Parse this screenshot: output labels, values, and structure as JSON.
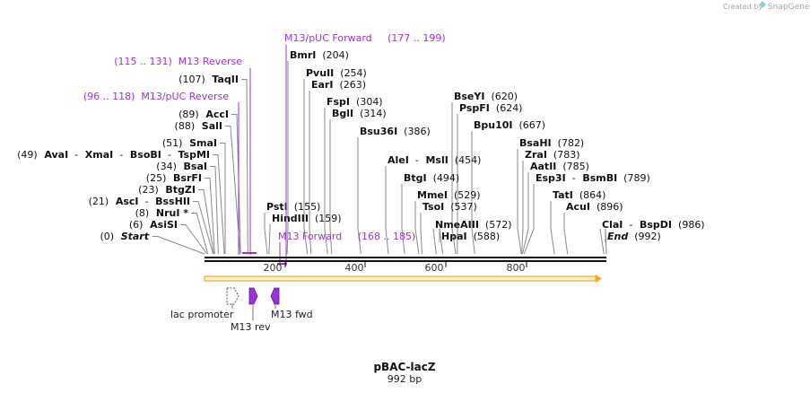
{
  "credit": {
    "created_by": "Created by",
    "brand": "SnapGene"
  },
  "map": {
    "name": "pBAC-lacZ",
    "length_label": "992 bp",
    "length": 992,
    "accent": "#9a33d6",
    "arrow_color": "#f5a623"
  },
  "ticks": [
    {
      "value": 200,
      "label": "200"
    },
    {
      "value": 400,
      "label": "400"
    },
    {
      "value": 600,
      "label": "600"
    },
    {
      "value": 800,
      "label": "800"
    }
  ],
  "sites": [
    {
      "id": "start",
      "parts": [
        {
          "t": "(0)",
          "s": "num"
        },
        {
          "t": "Start",
          "s": "site ital"
        }
      ]
    },
    {
      "id": "asisi",
      "parts": [
        {
          "t": "(6)",
          "s": "num"
        },
        {
          "t": "AsiSI",
          "s": "site"
        }
      ]
    },
    {
      "id": "nrui",
      "parts": [
        {
          "t": "(8)",
          "s": "num"
        },
        {
          "t": "NruI *",
          "s": "site"
        }
      ]
    },
    {
      "id": "asci",
      "parts": [
        {
          "t": "(21)",
          "s": "num"
        },
        {
          "t": "AscI",
          "s": "site"
        },
        {
          "t": "-",
          "s": "num"
        },
        {
          "t": "BssHII",
          "s": "site"
        }
      ]
    },
    {
      "id": "btgzi",
      "parts": [
        {
          "t": "(23)",
          "s": "num"
        },
        {
          "t": "BtgZI",
          "s": "site"
        }
      ]
    },
    {
      "id": "bsrfi",
      "parts": [
        {
          "t": "(25)",
          "s": "num"
        },
        {
          "t": "BsrFI",
          "s": "site"
        }
      ]
    },
    {
      "id": "bsai",
      "parts": [
        {
          "t": "(34)",
          "s": "num"
        },
        {
          "t": "BsaI",
          "s": "site"
        }
      ]
    },
    {
      "id": "avai",
      "parts": [
        {
          "t": "(49)",
          "s": "num"
        },
        {
          "t": "AvaI",
          "s": "site"
        },
        {
          "t": "-",
          "s": "num"
        },
        {
          "t": "XmaI",
          "s": "site"
        },
        {
          "t": "-",
          "s": "num"
        },
        {
          "t": "BsoBI",
          "s": "site"
        },
        {
          "t": "-",
          "s": "num"
        },
        {
          "t": "TspMI",
          "s": "site"
        }
      ]
    },
    {
      "id": "smai",
      "parts": [
        {
          "t": "(51)",
          "s": "num"
        },
        {
          "t": "SmaI",
          "s": "site"
        }
      ]
    },
    {
      "id": "sali",
      "parts": [
        {
          "t": "(88)",
          "s": "num"
        },
        {
          "t": "SalI",
          "s": "site"
        }
      ]
    },
    {
      "id": "acci",
      "parts": [
        {
          "t": "(89)",
          "s": "num"
        },
        {
          "t": "AccI",
          "s": "site"
        }
      ]
    },
    {
      "id": "taqii",
      "parts": [
        {
          "t": "(107)",
          "s": "num"
        },
        {
          "t": "TaqII",
          "s": "site"
        }
      ]
    },
    {
      "id": "psti",
      "parts": [
        {
          "t": "PstI",
          "s": "site"
        },
        {
          "t": "(155)",
          "s": "num"
        }
      ]
    },
    {
      "id": "hindiii",
      "parts": [
        {
          "t": "HindIII",
          "s": "site"
        },
        {
          "t": "(159)",
          "s": "num"
        }
      ]
    },
    {
      "id": "bmri",
      "parts": [
        {
          "t": "BmrI",
          "s": "site"
        },
        {
          "t": "(204)",
          "s": "num"
        }
      ]
    },
    {
      "id": "pvuii",
      "parts": [
        {
          "t": "PvuII",
          "s": "site"
        },
        {
          "t": "(254)",
          "s": "num"
        }
      ]
    },
    {
      "id": "eari",
      "parts": [
        {
          "t": "EarI",
          "s": "site"
        },
        {
          "t": "(263)",
          "s": "num"
        }
      ]
    },
    {
      "id": "fspi",
      "parts": [
        {
          "t": "FspI",
          "s": "site"
        },
        {
          "t": "(304)",
          "s": "num"
        }
      ]
    },
    {
      "id": "bgli",
      "parts": [
        {
          "t": "BglI",
          "s": "site"
        },
        {
          "t": "(314)",
          "s": "num"
        }
      ]
    },
    {
      "id": "bsu36i",
      "parts": [
        {
          "t": "Bsu36I",
          "s": "site"
        },
        {
          "t": "(386)",
          "s": "num"
        }
      ]
    },
    {
      "id": "alei",
      "parts": [
        {
          "t": "AleI",
          "s": "site"
        },
        {
          "t": "-",
          "s": "num"
        },
        {
          "t": "MslI",
          "s": "site"
        },
        {
          "t": "(454)",
          "s": "num"
        }
      ]
    },
    {
      "id": "btgi",
      "parts": [
        {
          "t": "BtgI",
          "s": "site"
        },
        {
          "t": "(494)",
          "s": "num"
        }
      ]
    },
    {
      "id": "mmei",
      "parts": [
        {
          "t": "MmeI",
          "s": "site"
        },
        {
          "t": "(529)",
          "s": "num"
        }
      ]
    },
    {
      "id": "tsoi",
      "parts": [
        {
          "t": "TsoI",
          "s": "site"
        },
        {
          "t": "(537)",
          "s": "num"
        }
      ]
    },
    {
      "id": "nmeaiii",
      "parts": [
        {
          "t": "NmeAIII",
          "s": "site"
        },
        {
          "t": "(572)",
          "s": "num"
        }
      ]
    },
    {
      "id": "hpai",
      "parts": [
        {
          "t": "HpaI",
          "s": "site"
        },
        {
          "t": "(588)",
          "s": "num"
        }
      ]
    },
    {
      "id": "bseyi",
      "parts": [
        {
          "t": "BseYI",
          "s": "site"
        },
        {
          "t": "(620)",
          "s": "num"
        }
      ]
    },
    {
      "id": "pspfi",
      "parts": [
        {
          "t": "PspFI",
          "s": "site"
        },
        {
          "t": "(624)",
          "s": "num"
        }
      ]
    },
    {
      "id": "bpu10i",
      "parts": [
        {
          "t": "Bpu10I",
          "s": "site"
        },
        {
          "t": "(667)",
          "s": "num"
        }
      ]
    },
    {
      "id": "bsahi",
      "parts": [
        {
          "t": "BsaHI",
          "s": "site"
        },
        {
          "t": "(782)",
          "s": "num"
        }
      ]
    },
    {
      "id": "zrai",
      "parts": [
        {
          "t": "ZraI",
          "s": "site"
        },
        {
          "t": "(783)",
          "s": "num"
        }
      ]
    },
    {
      "id": "aatii",
      "parts": [
        {
          "t": "AatII",
          "s": "site"
        },
        {
          "t": "(785)",
          "s": "num"
        }
      ]
    },
    {
      "id": "esp3i",
      "parts": [
        {
          "t": "Esp3I",
          "s": "site"
        },
        {
          "t": "-",
          "s": "num"
        },
        {
          "t": "BsmBI",
          "s": "site"
        },
        {
          "t": "(789)",
          "s": "num"
        }
      ]
    },
    {
      "id": "tati",
      "parts": [
        {
          "t": "TatI",
          "s": "site"
        },
        {
          "t": "(864)",
          "s": "num"
        }
      ]
    },
    {
      "id": "acui",
      "parts": [
        {
          "t": "AcuI",
          "s": "site"
        },
        {
          "t": "(896)",
          "s": "num"
        }
      ]
    },
    {
      "id": "clai",
      "parts": [
        {
          "t": "ClaI",
          "s": "site"
        },
        {
          "t": "-",
          "s": "num"
        },
        {
          "t": "BspDI",
          "s": "site"
        },
        {
          "t": "(986)",
          "s": "num"
        }
      ]
    },
    {
      "id": "end",
      "parts": [
        {
          "t": "End",
          "s": "site ital"
        },
        {
          "t": "(992)",
          "s": "num"
        }
      ]
    }
  ],
  "primers": [
    {
      "id": "m13-puc-forward",
      "text": "M13/pUC Forward     (177 .. 199)"
    },
    {
      "id": "m13-reverse",
      "text": "(115 .. 131)  M13 Reverse"
    },
    {
      "id": "m13-puc-reverse",
      "text": "(96 .. 118)  M13/pUC Reverse"
    },
    {
      "id": "m13-forward",
      "text": "M13 Forward     (168 .. 185)"
    }
  ],
  "features": [
    {
      "id": "lac-promoter",
      "label": "lac promoter"
    },
    {
      "id": "m13-rev",
      "label": "M13 rev"
    },
    {
      "id": "m13-fwd",
      "label": "M13 fwd"
    }
  ]
}
